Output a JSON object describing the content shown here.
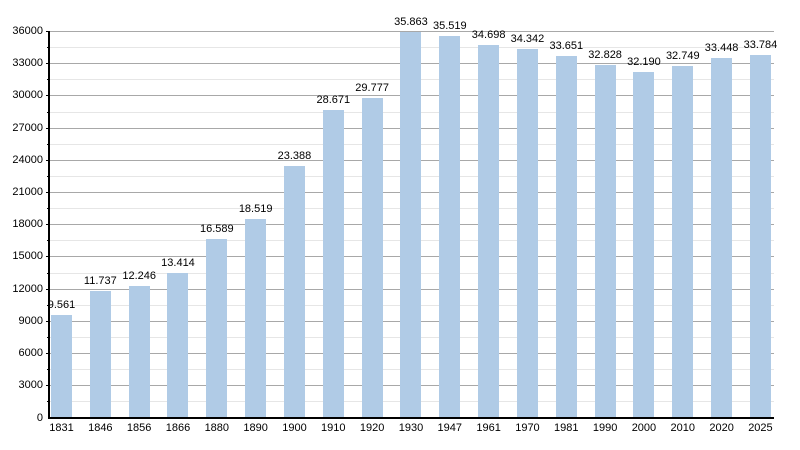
{
  "chart_data": {
    "type": "bar",
    "title": "",
    "xlabel": "",
    "ylabel": "",
    "legend": "none",
    "grid": "major+minor horizontal",
    "ylim": [
      0,
      36000
    ],
    "ytick_step": 3000,
    "ytick_minor_step": 1500,
    "ytick_labels": [
      "0",
      "3000",
      "6000",
      "9000",
      "12000",
      "15000",
      "18000",
      "21000",
      "24000",
      "27000",
      "30000",
      "33000",
      "36000"
    ],
    "categories": [
      "1831",
      "1846",
      "1856",
      "1866",
      "1880",
      "1890",
      "1900",
      "1910",
      "1920",
      "1930",
      "1947",
      "1961",
      "1970",
      "1981",
      "1990",
      "2000",
      "2010",
      "2020",
      "2025"
    ],
    "values": [
      9561,
      11737,
      12246,
      13414,
      16589,
      18519,
      23388,
      28671,
      29777,
      35863,
      35519,
      34698,
      34342,
      33651,
      32828,
      32190,
      32749,
      33448,
      33784
    ],
    "value_labels": [
      "9.561",
      "11.737",
      "12.246",
      "13.414",
      "16.589",
      "18.519",
      "23.388",
      "28.671",
      "29.777",
      "35.863",
      "35.519",
      "34.698",
      "34.342",
      "33.651",
      "32.828",
      "32.190",
      "32.749",
      "33.448",
      "33.784"
    ],
    "colors": {
      "bar_fill": "#b0cbe6",
      "gridline_major": "#a8a8a8",
      "gridline_minor": "#e6e6e6",
      "axis": "#000000",
      "text": "#000000",
      "background": "#ffffff"
    }
  }
}
